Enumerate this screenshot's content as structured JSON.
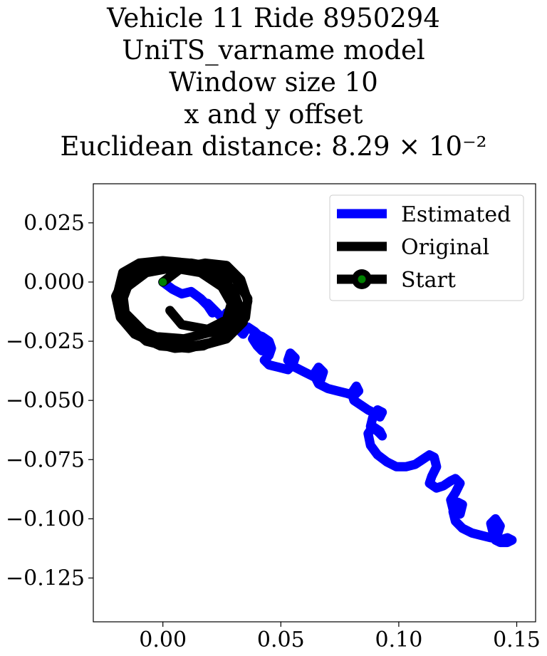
{
  "title_lines": [
    "Vehicle 11 Ride 8950294",
    "UniTS_varname model",
    "Window size 10",
    "x and y offset",
    "Euclidean distance: 8.29 × 10⁻²"
  ],
  "chart_data": {
    "type": "line",
    "title": "Vehicle 11 Ride 8950294 / UniTS_varname model / Window size 10 / x and y offset / Euclidean distance: 8.29 × 10⁻²",
    "xlim": [
      -0.0295,
      0.158
    ],
    "ylim": [
      -0.1435,
      0.0415
    ],
    "xticks": [
      0.0,
      0.05,
      0.1,
      0.15
    ],
    "xtick_labels": [
      "0.00",
      "0.05",
      "0.10",
      "0.15"
    ],
    "yticks": [
      0.025,
      0.0,
      -0.025,
      -0.05,
      -0.075,
      -0.1,
      -0.125
    ],
    "ytick_labels": [
      "0.025",
      "0.000",
      "−0.025",
      "−0.050",
      "−0.075",
      "−0.100",
      "−0.125"
    ],
    "grid": false,
    "legend": {
      "placement": "upper right",
      "entries": [
        {
          "label": "Estimated",
          "color": "#0000ff"
        },
        {
          "label": "Original",
          "color": "#000000"
        },
        {
          "label": "Start",
          "color": "#000000",
          "marker_color": "#008000"
        }
      ]
    },
    "series": [
      {
        "name": "Estimated",
        "color": "#0000ff",
        "x": [
          0.0,
          0.004,
          0.008,
          0.012,
          0.016,
          0.019,
          0.021,
          0.019,
          0.022,
          0.026,
          0.028,
          0.027,
          0.029,
          0.032,
          0.034,
          0.036,
          0.039,
          0.041,
          0.043,
          0.042,
          0.04,
          0.038,
          0.039,
          0.042,
          0.045,
          0.046,
          0.045,
          0.043,
          0.045,
          0.049,
          0.053,
          0.055,
          0.056,
          0.054,
          0.053,
          0.056,
          0.06,
          0.064,
          0.067,
          0.068,
          0.066,
          0.064,
          0.066,
          0.07,
          0.074,
          0.078,
          0.081,
          0.083,
          0.082,
          0.08,
          0.081,
          0.084,
          0.087,
          0.089,
          0.092,
          0.093,
          0.091,
          0.089,
          0.088,
          0.091,
          0.093,
          0.092,
          0.089,
          0.087,
          0.088,
          0.091,
          0.095,
          0.099,
          0.103,
          0.107,
          0.11,
          0.113,
          0.115,
          0.116,
          0.114,
          0.113,
          0.116,
          0.119,
          0.122,
          0.124,
          0.126,
          0.124,
          0.122,
          0.123,
          0.126,
          0.127,
          0.125,
          0.123,
          0.124,
          0.127,
          0.131,
          0.135,
          0.139,
          0.142,
          0.143,
          0.141,
          0.139,
          0.14,
          0.143,
          0.146,
          0.148,
          0.146,
          0.143,
          0.141
        ],
        "y": [
          0.0,
          -0.003,
          -0.005,
          -0.004,
          -0.007,
          -0.01,
          -0.013,
          -0.009,
          -0.012,
          -0.016,
          -0.019,
          -0.013,
          -0.017,
          -0.02,
          -0.022,
          -0.019,
          -0.021,
          -0.023,
          -0.026,
          -0.029,
          -0.027,
          -0.024,
          -0.022,
          -0.023,
          -0.025,
          -0.028,
          -0.031,
          -0.033,
          -0.035,
          -0.036,
          -0.037,
          -0.035,
          -0.032,
          -0.03,
          -0.033,
          -0.036,
          -0.038,
          -0.04,
          -0.041,
          -0.038,
          -0.036,
          -0.039,
          -0.043,
          -0.045,
          -0.046,
          -0.047,
          -0.048,
          -0.046,
          -0.044,
          -0.047,
          -0.05,
          -0.052,
          -0.054,
          -0.055,
          -0.057,
          -0.055,
          -0.054,
          -0.057,
          -0.061,
          -0.063,
          -0.065,
          -0.063,
          -0.061,
          -0.064,
          -0.069,
          -0.073,
          -0.076,
          -0.078,
          -0.078,
          -0.077,
          -0.075,
          -0.073,
          -0.074,
          -0.078,
          -0.082,
          -0.085,
          -0.087,
          -0.086,
          -0.084,
          -0.083,
          -0.085,
          -0.089,
          -0.092,
          -0.096,
          -0.098,
          -0.094,
          -0.093,
          -0.097,
          -0.101,
          -0.104,
          -0.106,
          -0.107,
          -0.108,
          -0.106,
          -0.103,
          -0.1,
          -0.102,
          -0.106,
          -0.109,
          -0.108,
          -0.109,
          -0.11,
          -0.11,
          -0.109
        ]
      },
      {
        "name": "Original",
        "color": "#000000",
        "x": [
          0.0,
          0.008,
          0.018,
          0.027,
          0.033,
          0.036,
          0.034,
          0.027,
          0.016,
          0.004,
          -0.008,
          -0.016,
          -0.019,
          -0.017,
          -0.01,
          0.0,
          0.011,
          0.021,
          0.029,
          0.032,
          0.03,
          0.022,
          0.011,
          -0.001,
          -0.012,
          -0.018,
          -0.02,
          -0.016,
          -0.008,
          0.003,
          0.014,
          0.024,
          0.03,
          0.033,
          0.03,
          0.023,
          0.013,
          0.001,
          -0.01,
          -0.016,
          -0.017,
          -0.012,
          -0.003,
          0.008,
          0.019,
          0.027,
          0.031,
          0.029,
          0.021,
          0.009,
          -0.004,
          -0.013,
          -0.018,
          -0.017,
          -0.011,
          -0.001,
          0.012,
          0.023,
          0.031,
          0.036,
          0.035,
          0.028,
          0.017,
          0.005,
          -0.007,
          -0.015,
          -0.018,
          -0.015,
          -0.007,
          0.004,
          0.016,
          0.025,
          0.029,
          0.027,
          0.019,
          0.008,
          0.003
        ],
        "y": [
          0.0,
          0.006,
          0.008,
          0.007,
          0.001,
          -0.008,
          -0.017,
          -0.024,
          -0.027,
          -0.026,
          -0.021,
          -0.013,
          -0.004,
          0.004,
          0.008,
          0.009,
          0.008,
          0.004,
          -0.003,
          -0.011,
          -0.019,
          -0.025,
          -0.028,
          -0.027,
          -0.022,
          -0.015,
          -0.006,
          0.002,
          0.006,
          0.008,
          0.007,
          0.003,
          -0.004,
          -0.012,
          -0.02,
          -0.025,
          -0.027,
          -0.026,
          -0.021,
          -0.013,
          -0.005,
          0.002,
          0.006,
          0.007,
          0.004,
          -0.002,
          -0.009,
          -0.016,
          -0.021,
          -0.024,
          -0.023,
          -0.019,
          -0.012,
          -0.004,
          0.003,
          0.007,
          0.008,
          0.006,
          0.001,
          -0.007,
          -0.015,
          -0.022,
          -0.027,
          -0.028,
          -0.025,
          -0.018,
          -0.01,
          -0.002,
          0.004,
          0.006,
          0.004,
          -0.002,
          -0.009,
          -0.016,
          -0.02,
          -0.018,
          -0.012
        ]
      }
    ],
    "start_point": {
      "x": 0.0,
      "y": 0.0
    }
  }
}
